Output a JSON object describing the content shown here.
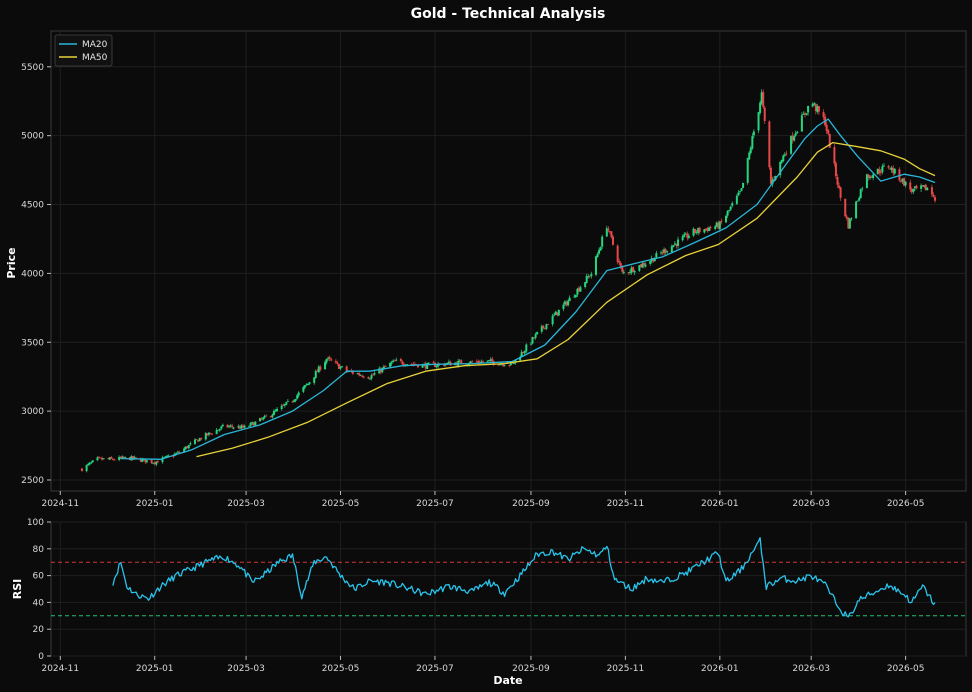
{
  "chart_data": [
    {
      "type": "candlestick",
      "title": "Gold - Technical Analysis",
      "ylabel": "Price",
      "xlabel": "",
      "x_range": [
        "2024-10-26",
        "2026-06-09"
      ],
      "ylim": [
        2420,
        5760
      ],
      "y_ticks": [
        2500,
        3000,
        3500,
        4000,
        4500,
        5000,
        5500
      ],
      "x_tick_labels": [
        "2024-11",
        "2025-01",
        "2025-03",
        "2025-05",
        "2025-07",
        "2025-09",
        "2025-11",
        "2026-01",
        "2026-03",
        "2026-05"
      ],
      "x_tick_dates": [
        "2024-11-01",
        "2025-01-01",
        "2025-03-01",
        "2025-05-01",
        "2025-07-01",
        "2025-09-01",
        "2025-11-01",
        "2026-01-01",
        "2026-03-01",
        "2026-05-01"
      ],
      "grid": true,
      "legend_position": "top-left",
      "candle_up_color": "#26d67f",
      "candle_down_color": "#e84848",
      "close_path": [
        [
          "2024-11-15",
          2580
        ],
        [
          "2024-11-25",
          2650
        ],
        [
          "2024-12-05",
          2650
        ],
        [
          "2024-12-15",
          2660
        ],
        [
          "2025-01-01",
          2630
        ],
        [
          "2025-01-15",
          2690
        ],
        [
          "2025-01-30",
          2800
        ],
        [
          "2025-02-15",
          2890
        ],
        [
          "2025-02-28",
          2880
        ],
        [
          "2025-03-15",
          2960
        ],
        [
          "2025-03-31",
          3080
        ],
        [
          "2025-04-10",
          3200
        ],
        [
          "2025-04-22",
          3380
        ],
        [
          "2025-05-05",
          3290
        ],
        [
          "2025-05-20",
          3250
        ],
        [
          "2025-06-05",
          3360
        ],
        [
          "2025-06-25",
          3330
        ],
        [
          "2025-07-15",
          3350
        ],
        [
          "2025-08-05",
          3360
        ],
        [
          "2025-08-20",
          3340
        ],
        [
          "2025-09-05",
          3560
        ],
        [
          "2025-09-25",
          3800
        ],
        [
          "2025-10-10",
          4000
        ],
        [
          "2025-10-20",
          4350
        ],
        [
          "2025-10-30",
          4000
        ],
        [
          "2025-11-15",
          4080
        ],
        [
          "2025-12-01",
          4200
        ],
        [
          "2025-12-15",
          4300
        ],
        [
          "2026-01-01",
          4350
        ],
        [
          "2026-01-15",
          4600
        ],
        [
          "2026-01-28",
          5300
        ],
        [
          "2026-02-03",
          4650
        ],
        [
          "2026-02-15",
          4950
        ],
        [
          "2026-03-01",
          5250
        ],
        [
          "2026-03-10",
          5100
        ],
        [
          "2026-03-20",
          4550
        ],
        [
          "2026-03-25",
          4350
        ],
        [
          "2026-04-05",
          4700
        ],
        [
          "2026-04-20",
          4780
        ],
        [
          "2026-05-05",
          4600
        ],
        [
          "2026-05-15",
          4620
        ],
        [
          "2026-05-20",
          4550
        ]
      ],
      "series": [
        {
          "name": "MA20",
          "color": "#29b6d8",
          "points": [
            [
              "2024-12-10",
              2655
            ],
            [
              "2025-01-05",
              2650
            ],
            [
              "2025-01-25",
              2720
            ],
            [
              "2025-02-15",
              2830
            ],
            [
              "2025-03-10",
              2900
            ],
            [
              "2025-03-31",
              3000
            ],
            [
              "2025-04-20",
              3150
            ],
            [
              "2025-05-05",
              3290
            ],
            [
              "2025-05-20",
              3290
            ],
            [
              "2025-06-10",
              3330
            ],
            [
              "2025-07-01",
              3340
            ],
            [
              "2025-07-25",
              3345
            ],
            [
              "2025-08-20",
              3360
            ],
            [
              "2025-09-10",
              3480
            ],
            [
              "2025-09-30",
              3720
            ],
            [
              "2025-10-20",
              4020
            ],
            [
              "2025-11-10",
              4080
            ],
            [
              "2025-11-25",
              4120
            ],
            [
              "2025-12-15",
              4220
            ],
            [
              "2026-01-05",
              4330
            ],
            [
              "2026-01-25",
              4500
            ],
            [
              "2026-02-10",
              4750
            ],
            [
              "2026-02-25",
              4980
            ],
            [
              "2026-03-05",
              5070
            ],
            [
              "2026-03-12",
              5120
            ],
            [
              "2026-03-20",
              5000
            ],
            [
              "2026-03-31",
              4850
            ],
            [
              "2026-04-15",
              4670
            ],
            [
              "2026-04-30",
              4720
            ],
            [
              "2026-05-10",
              4700
            ],
            [
              "2026-05-20",
              4660
            ]
          ]
        },
        {
          "name": "MA50",
          "color": "#e8d23a",
          "points": [
            [
              "2025-01-28",
              2670
            ],
            [
              "2025-02-20",
              2730
            ],
            [
              "2025-03-15",
              2810
            ],
            [
              "2025-04-10",
              2920
            ],
            [
              "2025-05-05",
              3060
            ],
            [
              "2025-05-31",
              3200
            ],
            [
              "2025-06-25",
              3290
            ],
            [
              "2025-07-20",
              3330
            ],
            [
              "2025-08-15",
              3345
            ],
            [
              "2025-09-05",
              3380
            ],
            [
              "2025-09-25",
              3520
            ],
            [
              "2025-10-20",
              3790
            ],
            [
              "2025-11-15",
              3990
            ],
            [
              "2025-12-10",
              4130
            ],
            [
              "2025-12-31",
              4210
            ],
            [
              "2026-01-25",
              4400
            ],
            [
              "2026-02-20",
              4700
            ],
            [
              "2026-03-05",
              4880
            ],
            [
              "2026-03-15",
              4950
            ],
            [
              "2026-03-31",
              4920
            ],
            [
              "2026-04-15",
              4890
            ],
            [
              "2026-04-30",
              4830
            ],
            [
              "2026-05-10",
              4760
            ],
            [
              "2026-05-20",
              4710
            ]
          ]
        }
      ]
    },
    {
      "type": "line",
      "title": "",
      "ylabel": "RSI",
      "xlabel": "Date",
      "x_range": [
        "2024-10-26",
        "2026-06-09"
      ],
      "ylim": [
        0,
        100
      ],
      "y_ticks": [
        0,
        20,
        40,
        60,
        80,
        100
      ],
      "x_tick_labels": [
        "2024-11",
        "2025-01",
        "2025-03",
        "2025-05",
        "2025-07",
        "2025-09",
        "2025-11",
        "2026-01",
        "2026-03",
        "2026-05"
      ],
      "x_tick_dates": [
        "2024-11-01",
        "2025-01-01",
        "2025-03-01",
        "2025-05-01",
        "2025-07-01",
        "2025-09-01",
        "2025-11-01",
        "2026-01-01",
        "2026-03-01",
        "2026-05-01"
      ],
      "grid": true,
      "overbought_line": 70,
      "oversold_line": 30,
      "overbought_color": "#d03a3a",
      "oversold_color": "#26c07a",
      "series": [
        {
          "name": "",
          "color": "#29c4ec",
          "points": [
            [
              "2024-12-05",
              55
            ],
            [
              "2024-12-10",
              70
            ],
            [
              "2024-12-14",
              52
            ],
            [
              "2024-12-20",
              46
            ],
            [
              "2024-12-28",
              43
            ],
            [
              "2025-01-05",
              52
            ],
            [
              "2025-01-15",
              60
            ],
            [
              "2025-01-25",
              65
            ],
            [
              "2025-02-05",
              71
            ],
            [
              "2025-02-15",
              74
            ],
            [
              "2025-02-25",
              67
            ],
            [
              "2025-03-05",
              55
            ],
            [
              "2025-03-12",
              60
            ],
            [
              "2025-03-22",
              70
            ],
            [
              "2025-03-31",
              75
            ],
            [
              "2025-04-06",
              45
            ],
            [
              "2025-04-14",
              70
            ],
            [
              "2025-04-22",
              74
            ],
            [
              "2025-05-01",
              60
            ],
            [
              "2025-05-10",
              50
            ],
            [
              "2025-05-20",
              56
            ],
            [
              "2025-05-31",
              55
            ],
            [
              "2025-06-15",
              50
            ],
            [
              "2025-06-25",
              46
            ],
            [
              "2025-07-10",
              52
            ],
            [
              "2025-07-25",
              48
            ],
            [
              "2025-08-05",
              55
            ],
            [
              "2025-08-15",
              47
            ],
            [
              "2025-08-25",
              60
            ],
            [
              "2025-09-05",
              76
            ],
            [
              "2025-09-15",
              78
            ],
            [
              "2025-09-25",
              72
            ],
            [
              "2025-10-05",
              80
            ],
            [
              "2025-10-15",
              75
            ],
            [
              "2025-10-20",
              82
            ],
            [
              "2025-10-25",
              57
            ],
            [
              "2025-11-05",
              50
            ],
            [
              "2025-11-15",
              58
            ],
            [
              "2025-11-25",
              55
            ],
            [
              "2025-12-10",
              62
            ],
            [
              "2025-12-31",
              77
            ],
            [
              "2026-01-05",
              55
            ],
            [
              "2026-01-15",
              65
            ],
            [
              "2026-01-27",
              86
            ],
            [
              "2026-01-31",
              52
            ],
            [
              "2026-02-10",
              58
            ],
            [
              "2026-02-20",
              56
            ],
            [
              "2026-03-01",
              60
            ],
            [
              "2026-03-10",
              53
            ],
            [
              "2026-03-18",
              38
            ],
            [
              "2026-03-25",
              28
            ],
            [
              "2026-04-01",
              42
            ],
            [
              "2026-04-10",
              47
            ],
            [
              "2026-04-20",
              53
            ],
            [
              "2026-04-30",
              46
            ],
            [
              "2026-05-05",
              40
            ],
            [
              "2026-05-12",
              52
            ],
            [
              "2026-05-20",
              38
            ]
          ]
        }
      ]
    }
  ]
}
